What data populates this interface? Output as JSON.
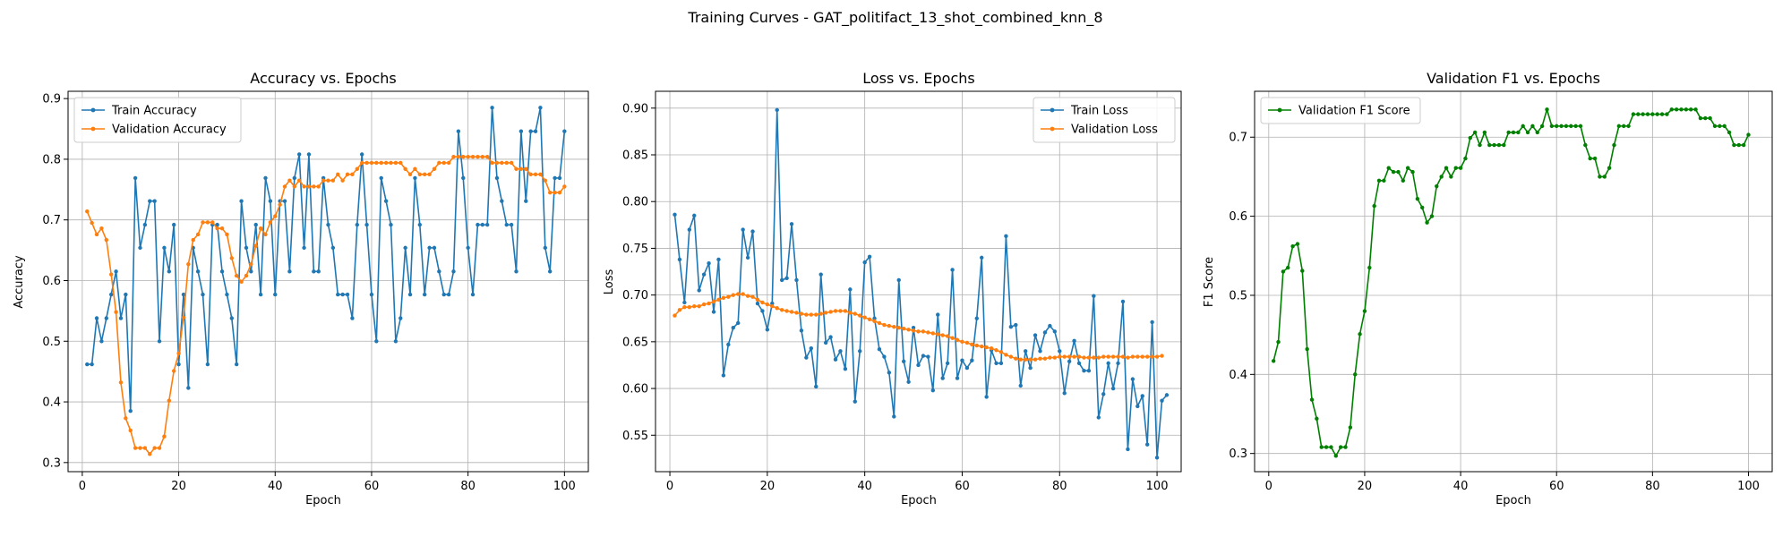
{
  "figure": {
    "suptitle": "Training Curves - GAT_politifact_13_shot_combined_knn_8"
  },
  "chart_data": [
    {
      "type": "line",
      "title": "Accuracy vs. Epochs",
      "xlabel": "Epoch",
      "ylabel": "Accuracy",
      "xlim": [
        -2.95,
        104.95
      ],
      "ylim": [
        0.285,
        0.912
      ],
      "xticks": [
        0,
        20,
        40,
        60,
        80,
        100
      ],
      "yticks": [
        0.3,
        0.4,
        0.5,
        0.6,
        0.7,
        0.8,
        0.9
      ],
      "tick_decimals": 1,
      "grid": true,
      "legend_position": "top-left",
      "series": [
        {
          "name": "Train Accuracy",
          "color": "#1f77b4",
          "x_start": 1,
          "values": [
            0.462,
            0.462,
            0.538,
            0.5,
            0.538,
            0.577,
            0.615,
            0.538,
            0.577,
            0.385,
            0.769,
            0.654,
            0.692,
            0.731,
            0.731,
            0.5,
            0.654,
            0.615,
            0.692,
            0.462,
            0.577,
            0.423,
            0.654,
            0.615,
            0.577,
            0.462,
            0.692,
            0.692,
            0.615,
            0.577,
            0.538,
            0.462,
            0.731,
            0.654,
            0.615,
            0.692,
            0.577,
            0.769,
            0.731,
            0.577,
            0.731,
            0.731,
            0.615,
            0.769,
            0.808,
            0.654,
            0.808,
            0.615,
            0.615,
            0.769,
            0.692,
            0.654,
            0.577,
            0.577,
            0.577,
            0.538,
            0.692,
            0.808,
            0.692,
            0.577,
            0.5,
            0.769,
            0.731,
            0.692,
            0.5,
            0.538,
            0.654,
            0.577,
            0.769,
            0.692,
            0.577,
            0.654,
            0.654,
            0.615,
            0.577,
            0.577,
            0.615,
            0.846,
            0.769,
            0.654,
            0.577,
            0.692,
            0.692,
            0.692,
            0.885,
            0.769,
            0.731,
            0.692,
            0.692,
            0.615,
            0.846,
            0.731,
            0.846,
            0.846,
            0.885,
            0.654,
            0.615,
            0.769,
            0.769,
            0.846
          ]
        },
        {
          "name": "Validation Accuracy",
          "color": "#ff7f0e",
          "x_start": 1,
          "values": [
            0.714,
            0.695,
            0.676,
            0.686,
            0.667,
            0.61,
            0.548,
            0.432,
            0.373,
            0.353,
            0.324,
            0.324,
            0.324,
            0.314,
            0.324,
            0.324,
            0.343,
            0.402,
            0.451,
            0.48,
            0.539,
            0.627,
            0.667,
            0.676,
            0.696,
            0.696,
            0.696,
            0.686,
            0.686,
            0.676,
            0.637,
            0.608,
            0.598,
            0.608,
            0.627,
            0.657,
            0.686,
            0.676,
            0.696,
            0.706,
            0.725,
            0.755,
            0.765,
            0.755,
            0.765,
            0.755,
            0.755,
            0.755,
            0.755,
            0.765,
            0.765,
            0.765,
            0.775,
            0.765,
            0.775,
            0.775,
            0.784,
            0.794,
            0.794,
            0.794,
            0.794,
            0.794,
            0.794,
            0.794,
            0.794,
            0.794,
            0.784,
            0.775,
            0.784,
            0.775,
            0.775,
            0.775,
            0.784,
            0.794,
            0.794,
            0.794,
            0.804,
            0.804,
            0.804,
            0.804,
            0.804,
            0.804,
            0.804,
            0.804,
            0.794,
            0.794,
            0.794,
            0.794,
            0.794,
            0.784,
            0.784,
            0.784,
            0.775,
            0.775,
            0.775,
            0.765,
            0.745,
            0.745,
            0.745,
            0.755
          ]
        }
      ]
    },
    {
      "type": "line",
      "title": "Loss vs. Epochs",
      "xlabel": "Epoch",
      "ylabel": "Loss",
      "xlim": [
        -2.95,
        104.95
      ],
      "ylim": [
        0.511,
        0.918
      ],
      "xticks": [
        0,
        20,
        40,
        60,
        80,
        100
      ],
      "yticks": [
        0.55,
        0.6,
        0.65,
        0.7,
        0.75,
        0.8,
        0.85,
        0.9
      ],
      "tick_decimals": 2,
      "grid": true,
      "legend_position": "top-right",
      "series": [
        {
          "name": "Train Loss",
          "color": "#1f77b4",
          "x_start": 1,
          "values": [
            0.786,
            0.738,
            0.692,
            0.77,
            0.785,
            0.705,
            0.722,
            0.734,
            0.682,
            0.738,
            0.614,
            0.647,
            0.665,
            0.67,
            0.77,
            0.74,
            0.768,
            0.691,
            0.683,
            0.663,
            0.691,
            0.898,
            0.716,
            0.718,
            0.776,
            0.716,
            0.662,
            0.633,
            0.643,
            0.602,
            0.722,
            0.649,
            0.655,
            0.631,
            0.64,
            0.621,
            0.706,
            0.586,
            0.64,
            0.735,
            0.741,
            0.675,
            0.642,
            0.634,
            0.617,
            0.57,
            0.716,
            0.629,
            0.607,
            0.665,
            0.625,
            0.635,
            0.634,
            0.598,
            0.679,
            0.611,
            0.627,
            0.727,
            0.611,
            0.63,
            0.622,
            0.63,
            0.675,
            0.74,
            0.591,
            0.641,
            0.627,
            0.627,
            0.763,
            0.666,
            0.668,
            0.603,
            0.64,
            0.622,
            0.657,
            0.64,
            0.66,
            0.667,
            0.661,
            0.64,
            0.595,
            0.629,
            0.651,
            0.627,
            0.619,
            0.619,
            0.699,
            0.569,
            0.594,
            0.627,
            0.6,
            0.627,
            0.693,
            0.535,
            0.61,
            0.581,
            0.592,
            0.54,
            0.671,
            0.526,
            0.587,
            0.593
          ]
        },
        {
          "name": "Validation Loss",
          "color": "#ff7f0e",
          "x_start": 1,
          "values": [
            0.678,
            0.684,
            0.687,
            0.687,
            0.688,
            0.688,
            0.69,
            0.691,
            0.693,
            0.695,
            0.697,
            0.698,
            0.7,
            0.701,
            0.701,
            0.699,
            0.698,
            0.695,
            0.692,
            0.69,
            0.688,
            0.686,
            0.684,
            0.683,
            0.682,
            0.681,
            0.68,
            0.679,
            0.679,
            0.679,
            0.68,
            0.681,
            0.682,
            0.683,
            0.683,
            0.683,
            0.681,
            0.68,
            0.678,
            0.676,
            0.674,
            0.672,
            0.67,
            0.668,
            0.667,
            0.666,
            0.665,
            0.664,
            0.663,
            0.662,
            0.661,
            0.661,
            0.66,
            0.659,
            0.658,
            0.657,
            0.656,
            0.654,
            0.652,
            0.65,
            0.649,
            0.647,
            0.646,
            0.645,
            0.644,
            0.643,
            0.641,
            0.639,
            0.636,
            0.634,
            0.632,
            0.631,
            0.631,
            0.631,
            0.631,
            0.632,
            0.632,
            0.633,
            0.633,
            0.634,
            0.634,
            0.634,
            0.634,
            0.634,
            0.633,
            0.633,
            0.633,
            0.633,
            0.634,
            0.634,
            0.634,
            0.634,
            0.634,
            0.633,
            0.634,
            0.634,
            0.634,
            0.634,
            0.634,
            0.634,
            0.635
          ]
        }
      ]
    },
    {
      "type": "line",
      "title": "Validation F1 vs. Epochs",
      "xlabel": "Epoch",
      "ylabel": "F1 Score",
      "xlim": [
        -2.95,
        104.95
      ],
      "ylim": [
        0.277,
        0.758
      ],
      "xticks": [
        0,
        20,
        40,
        60,
        80,
        100
      ],
      "yticks": [
        0.3,
        0.4,
        0.5,
        0.6,
        0.7
      ],
      "tick_decimals": 1,
      "grid": true,
      "legend_position": "top-left",
      "series": [
        {
          "name": "Validation F1 Score",
          "color": "#008000",
          "x_start": 1,
          "values": [
            0.417,
            0.441,
            0.53,
            0.535,
            0.562,
            0.565,
            0.531,
            0.432,
            0.368,
            0.344,
            0.308,
            0.308,
            0.308,
            0.297,
            0.308,
            0.308,
            0.333,
            0.4,
            0.451,
            0.48,
            0.535,
            0.613,
            0.645,
            0.645,
            0.661,
            0.656,
            0.656,
            0.645,
            0.661,
            0.656,
            0.622,
            0.611,
            0.592,
            0.6,
            0.638,
            0.65,
            0.661,
            0.65,
            0.661,
            0.661,
            0.673,
            0.699,
            0.706,
            0.69,
            0.706,
            0.69,
            0.69,
            0.69,
            0.69,
            0.706,
            0.706,
            0.706,
            0.714,
            0.706,
            0.714,
            0.706,
            0.714,
            0.735,
            0.714,
            0.714,
            0.714,
            0.714,
            0.714,
            0.714,
            0.714,
            0.69,
            0.673,
            0.673,
            0.65,
            0.65,
            0.661,
            0.69,
            0.714,
            0.714,
            0.714,
            0.729,
            0.729,
            0.729,
            0.729,
            0.729,
            0.729,
            0.729,
            0.729,
            0.735,
            0.735,
            0.735,
            0.735,
            0.735,
            0.735,
            0.724,
            0.724,
            0.724,
            0.714,
            0.714,
            0.714,
            0.706,
            0.69,
            0.69,
            0.69,
            0.703
          ]
        }
      ]
    }
  ]
}
